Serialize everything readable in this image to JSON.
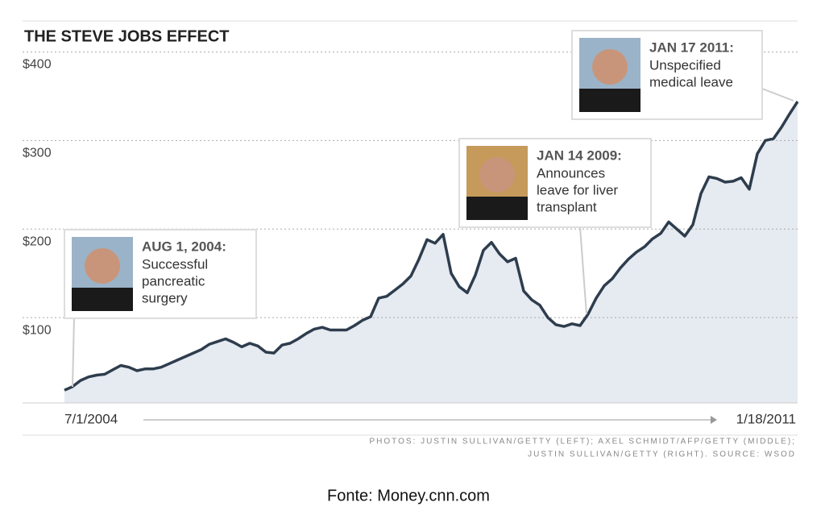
{
  "chart_data": {
    "type": "area",
    "title": "THE STEVE JOBS EFFECT",
    "categories": [
      "7/1/2004",
      null,
      null,
      null,
      null,
      null,
      null,
      null,
      null,
      null,
      null,
      null,
      null,
      null,
      null,
      null,
      null,
      null,
      null,
      null,
      null,
      null,
      null,
      null,
      null,
      null,
      null,
      null,
      null,
      null,
      null,
      null,
      null,
      null,
      null,
      null,
      null,
      null,
      null,
      null,
      null,
      null,
      null,
      null,
      null,
      null,
      null,
      null,
      null,
      null,
      null,
      null,
      null,
      null,
      null,
      null,
      null,
      null,
      null,
      null,
      null,
      null,
      null,
      null,
      null,
      null,
      null,
      null,
      null,
      null,
      null,
      null,
      null,
      null,
      null,
      null,
      null,
      null,
      null,
      null,
      null,
      null,
      null,
      null,
      null,
      null,
      null,
      null,
      null,
      null,
      null,
      "1/18/2011"
    ],
    "values": [
      18,
      22,
      29,
      33,
      35,
      36,
      41,
      46,
      44,
      40,
      42,
      42,
      44,
      48,
      52,
      56,
      60,
      64,
      70,
      73,
      76,
      72,
      67,
      71,
      68,
      61,
      60,
      69,
      71,
      76,
      82,
      87,
      89,
      86,
      86,
      86,
      91,
      97,
      101,
      122,
      124,
      131,
      138,
      147,
      166,
      188,
      184,
      194,
      150,
      135,
      128,
      148,
      176,
      185,
      172,
      163,
      167,
      130,
      120,
      114,
      100,
      92,
      90,
      93,
      91,
      104,
      122,
      136,
      144,
      156,
      166,
      174,
      180,
      189,
      195,
      208,
      200,
      192,
      205,
      240,
      259,
      257,
      253,
      254,
      258,
      245,
      285,
      300,
      302,
      315,
      330,
      344
    ],
    "color": "#2e3d4d",
    "fill": "#e6eaf1",
    "ylim": [
      0,
      435
    ],
    "yticks": [
      {
        "value": 100,
        "label": "$100"
      },
      {
        "value": 200,
        "label": "$200"
      },
      {
        "value": 300,
        "label": "$300"
      },
      {
        "value": 400,
        "label": "$400"
      }
    ],
    "grid": true,
    "annotations": [
      {
        "date": "AUG 1, 2004:",
        "text": [
          "Successful",
          "pancreatic",
          "surgery"
        ]
      },
      {
        "date": "JAN 14 2009:",
        "text": [
          "Announces",
          "leave for liver",
          "transplant"
        ]
      },
      {
        "date": "JAN 17 2011:",
        "text": [
          "Unspecified",
          "medical leave"
        ]
      }
    ],
    "credits": [
      "PHOTOS: JUSTIN SULLIVAN/GETTY (LEFT); AXEL SCHMIDT/AFP/GETTY (MIDDLE);",
      "JUSTIN SULLIVAN/GETTY (RIGHT). SOURCE: WSOD"
    ],
    "source": "Fonte: Money.cnn.com"
  }
}
